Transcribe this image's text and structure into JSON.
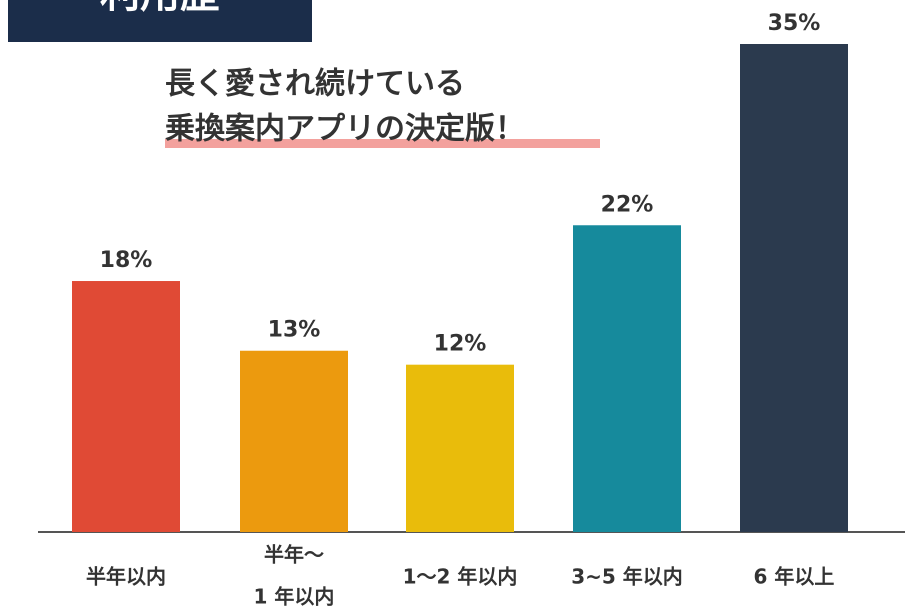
{
  "chart_data": {
    "type": "bar",
    "title": "利用歴",
    "subtitle": [
      "長く愛され続けている",
      "乗換案内アプリの決定版！"
    ],
    "categories": [
      [
        "半年以内"
      ],
      [
        "半年〜",
        "1 年以内"
      ],
      [
        "1〜2 年以内"
      ],
      [
        "3~5 年以内"
      ],
      [
        "6 年以上"
      ]
    ],
    "values": [
      18,
      13,
      12,
      22,
      35
    ],
    "value_labels": [
      "18%",
      "13%",
      "12%",
      "22%",
      "35%"
    ],
    "colors": [
      "#e04a35",
      "#ec9a0e",
      "#e9bc0b",
      "#168a9c",
      "#2b3a4e"
    ]
  }
}
